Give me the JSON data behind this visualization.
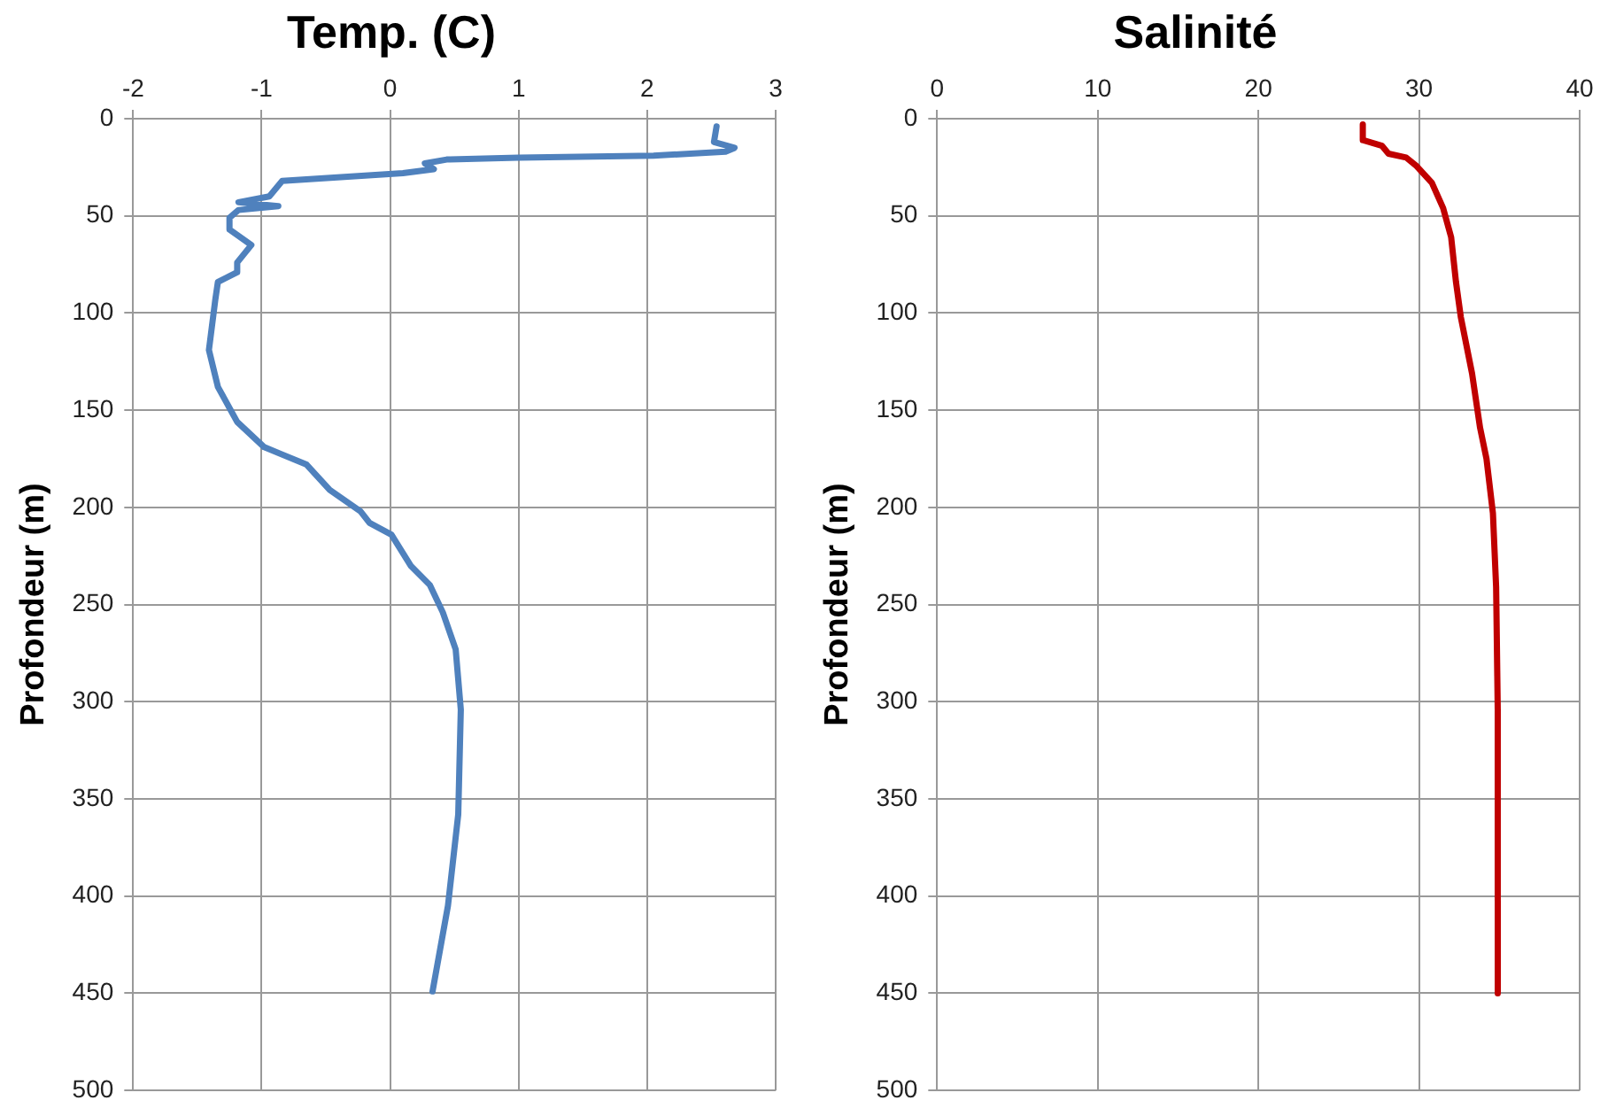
{
  "chart_data": [
    {
      "type": "line",
      "title": "Temp. (C)",
      "ylabel": "Profondeur (m)",
      "xlim": [
        -2,
        3
      ],
      "xticks": [
        -2,
        -1,
        0,
        1,
        2,
        3
      ],
      "ylim": [
        500,
        0
      ],
      "yticks": [
        0,
        50,
        100,
        150,
        200,
        250,
        300,
        350,
        400,
        450,
        500
      ],
      "grid": true,
      "marker": "none",
      "legend": false,
      "series": [
        {
          "color": "#4f81bd",
          "x": [
            2.54,
            2.52,
            2.68,
            2.61,
            2.05,
            1.0,
            0.44,
            0.27,
            0.34,
            0.1,
            -0.84,
            -0.94,
            -1.18,
            -0.87,
            -1.18,
            -1.25,
            -1.25,
            -1.08,
            -1.19,
            -1.19,
            -1.34,
            -1.36,
            -1.41,
            -1.34,
            -1.19,
            -0.98,
            -0.65,
            -0.47,
            -0.23,
            -0.16,
            0.01,
            0.16,
            0.31,
            0.41,
            0.51,
            0.55,
            0.53,
            0.45,
            0.33
          ],
          "values": [
            4,
            12,
            15,
            17,
            19,
            20,
            21,
            23,
            26,
            28,
            32,
            40,
            43,
            45,
            47,
            51,
            57,
            65,
            74,
            79,
            84,
            93,
            119,
            138,
            156,
            169,
            178,
            191,
            202,
            208,
            214,
            230,
            240,
            254,
            273,
            304,
            358,
            405,
            449
          ]
        }
      ]
    },
    {
      "type": "line",
      "title": "Salinité",
      "ylabel": "Profondeur (m)",
      "xlim": [
        0,
        40
      ],
      "xticks": [
        0,
        10,
        20,
        30,
        40
      ],
      "ylim": [
        500,
        0
      ],
      "yticks": [
        0,
        50,
        100,
        150,
        200,
        250,
        300,
        350,
        400,
        450,
        500
      ],
      "grid": true,
      "marker": "none",
      "legend": false,
      "series": [
        {
          "color": "#c00000",
          "x": [
            26.5,
            26.5,
            27.7,
            28.1,
            29.2,
            29.8,
            30.8,
            31.5,
            32.0,
            32.3,
            32.6,
            33.3,
            33.8,
            34.2,
            34.6,
            34.8,
            34.9,
            34.9
          ],
          "values": [
            3,
            11,
            14,
            18,
            20,
            24,
            33,
            46,
            61,
            84,
            102,
            131,
            159,
            175,
            203,
            241,
            304,
            450
          ]
        }
      ]
    }
  ]
}
